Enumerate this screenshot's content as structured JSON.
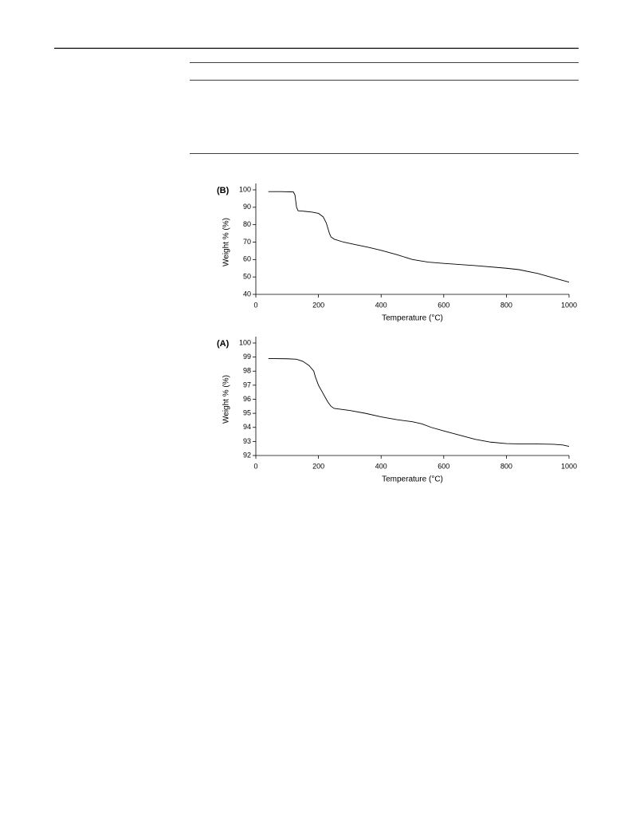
{
  "chart_data": [
    {
      "type": "line",
      "label": "(B)",
      "x_label": "Temperature (°C)",
      "y_label": "Weight % (%)",
      "x": [
        40,
        80,
        120,
        125,
        130,
        135,
        150,
        180,
        200,
        215,
        225,
        235,
        240,
        250,
        280,
        320,
        360,
        400,
        450,
        500,
        550,
        600,
        700,
        800,
        840,
        900,
        950,
        1000
      ],
      "series": [
        {
          "color": "#000000",
          "values": [
            99,
            99,
            98.8,
            97,
            90,
            88,
            87.8,
            87.2,
            86.5,
            84.5,
            81,
            75,
            73,
            71.7,
            70,
            68.5,
            67,
            65.3,
            62.8,
            60,
            58.5,
            57.8,
            56.5,
            55,
            54.2,
            52,
            49.5,
            47
          ]
        }
      ],
      "xlim": [
        0,
        1000
      ],
      "xticks": [
        0,
        200,
        400,
        600,
        800,
        1000
      ],
      "ylim": [
        40,
        100
      ],
      "yticks": [
        40,
        50,
        60,
        70,
        80,
        90,
        100
      ]
    },
    {
      "type": "line",
      "label": "(A)",
      "x_label": "Temperature (°C)",
      "y_label": "Weight % (%)",
      "x": [
        40,
        100,
        130,
        150,
        170,
        185,
        190,
        200,
        210,
        220,
        230,
        240,
        250,
        300,
        350,
        400,
        450,
        500,
        530,
        560,
        600,
        650,
        700,
        750,
        800,
        850,
        900,
        950,
        980,
        1000
      ],
      "series": [
        {
          "color": "#000000",
          "values": [
            98.9,
            98.88,
            98.85,
            98.7,
            98.4,
            98.0,
            97.6,
            97.0,
            96.6,
            96.2,
            95.8,
            95.5,
            95.35,
            95.2,
            95.0,
            94.75,
            94.55,
            94.4,
            94.25,
            94.0,
            93.75,
            93.45,
            93.15,
            92.95,
            92.85,
            92.82,
            92.82,
            92.8,
            92.75,
            92.65
          ]
        }
      ],
      "xlim": [
        0,
        1000
      ],
      "xticks": [
        0,
        200,
        400,
        600,
        800,
        1000
      ],
      "ylim": [
        92,
        100
      ],
      "yticks": [
        92,
        93,
        94,
        95,
        96,
        97,
        98,
        99,
        100
      ]
    }
  ]
}
